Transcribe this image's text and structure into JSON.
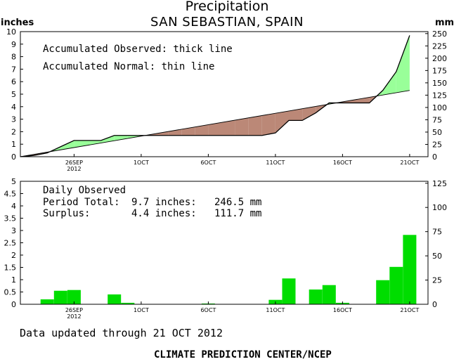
{
  "header": {
    "title": "Precipitation",
    "subtitle": "SAN SEBASTIAN, SPAIN",
    "left_unit": "inches",
    "right_unit": "mm"
  },
  "colors": {
    "surplus_fill": "#99ff99",
    "deficit_fill": "#bb8877",
    "daily_bar": "#00dd00",
    "axis": "#000000"
  },
  "chart_data": [
    {
      "type": "area",
      "legend_lines": [
        "Accumulated Observed: thick line",
        "Accumulated Normal: thin line"
      ],
      "x_ticks": [
        {
          "day": 4,
          "label": "26SEP",
          "sublabel": "2012"
        },
        {
          "day": 9,
          "label": "1OCT"
        },
        {
          "day": 14,
          "label": "6OCT"
        },
        {
          "day": 19,
          "label": "11OCT"
        },
        {
          "day": 24,
          "label": "16OCT"
        },
        {
          "day": 29,
          "label": "21OCT"
        }
      ],
      "xlim": [
        0,
        29.5
      ],
      "ylim": [
        0,
        10
      ],
      "y_ticks": [
        0,
        1,
        2,
        3,
        4,
        5,
        6,
        7,
        8,
        9,
        10
      ],
      "y2_ticks": [
        0,
        25,
        50,
        75,
        100,
        125,
        150,
        175,
        200,
        225,
        250
      ],
      "series": [
        {
          "name": "Accumulated Observed",
          "x": [
            0,
            1,
            2,
            3,
            4,
            5,
            6,
            7,
            8,
            9,
            10,
            11,
            12,
            13,
            14,
            15,
            16,
            17,
            18,
            19,
            20,
            21,
            22,
            23,
            24,
            25,
            26,
            27,
            28,
            29
          ],
          "y": [
            0,
            0.1,
            0.3,
            0.8,
            1.3,
            1.3,
            1.3,
            1.7,
            1.7,
            1.7,
            1.7,
            1.7,
            1.7,
            1.7,
            1.7,
            1.7,
            1.7,
            1.7,
            1.7,
            1.9,
            2.9,
            2.9,
            3.5,
            4.3,
            4.3,
            4.3,
            4.3,
            5.3,
            6.8,
            9.7
          ]
        },
        {
          "name": "Accumulated Normal",
          "x": [
            0,
            29
          ],
          "y": [
            0,
            5.3
          ]
        }
      ]
    },
    {
      "type": "bar",
      "annotation": {
        "heading": "Daily Observed",
        "period_label": "Period Total:",
        "period_in": "9.7 inches:",
        "period_mm": "246.5 mm",
        "surplus_label": "Surplus:",
        "surplus_in": "4.4 inches:",
        "surplus_mm": "111.7 mm"
      },
      "ylim": [
        0,
        5
      ],
      "y_ticks": [
        0,
        0.5,
        1,
        1.5,
        2,
        2.5,
        3,
        3.5,
        4,
        4.5,
        5
      ],
      "y_tick_labels": [
        "0",
        "0.5",
        "1",
        "1.5",
        "2",
        "2.5",
        "3",
        "3.5",
        "4",
        "4.5",
        "5"
      ],
      "y2_ticks": [
        0,
        25,
        50,
        75,
        100,
        125
      ],
      "x": [
        2,
        3,
        4,
        7,
        8,
        14,
        19,
        20,
        22,
        23,
        24,
        27,
        28,
        29
      ],
      "values": [
        0.2,
        0.55,
        0.58,
        0.4,
        0.06,
        0.03,
        0.18,
        1.05,
        0.6,
        0.78,
        0.06,
        0.98,
        1.52,
        2.82
      ]
    }
  ],
  "footer": {
    "updated": "Data updated through 21 OCT 2012",
    "credit": "CLIMATE PREDICTION CENTER/NCEP"
  }
}
